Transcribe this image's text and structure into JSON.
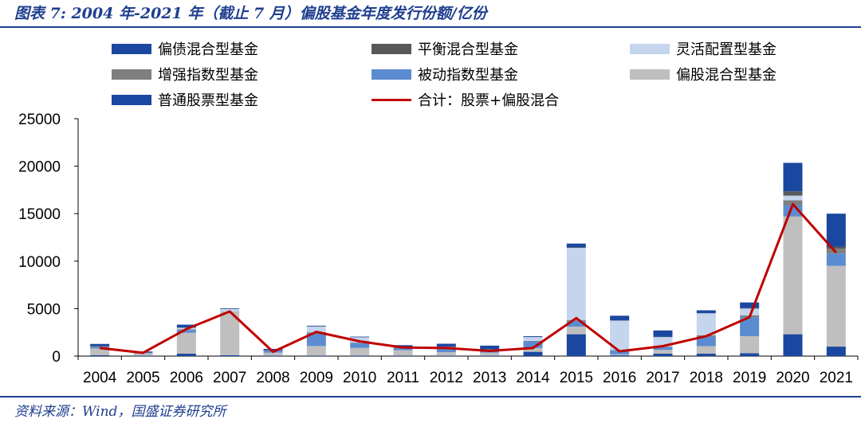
{
  "header": {
    "title": "图表 7:  2004 年-2021 年（截止 7 月）偏股基金年度发行份额/亿份"
  },
  "footer": {
    "source": "资料来源：Wind，国盛证券研究所"
  },
  "chart_data": {
    "type": "bar",
    "subtype": "stacked-bar-with-line",
    "categories": [
      "2004",
      "2005",
      "2006",
      "2007",
      "2008",
      "2009",
      "2010",
      "2011",
      "2012",
      "2013",
      "2014",
      "2015",
      "2016",
      "2017",
      "2018",
      "2019",
      "2020",
      "2021"
    ],
    "ylim": [
      0,
      25000
    ],
    "yticks": [
      0,
      5000,
      10000,
      15000,
      20000,
      25000
    ],
    "ytick_labels": [
      "0",
      "5000",
      "10000",
      "15000",
      "20000",
      "25000"
    ],
    "grid": false,
    "legend_position": "top",
    "series": [
      {
        "name": "普通股票型基金",
        "color": "#1A47A0",
        "values": [
          100,
          50,
          250,
          100,
          60,
          60,
          60,
          60,
          60,
          60,
          450,
          2300,
          80,
          250,
          250,
          300,
          2300,
          1000
        ]
      },
      {
        "name": "偏股混合型基金",
        "color": "#BFBFBF",
        "values": [
          700,
          250,
          2200,
          4500,
          300,
          1000,
          800,
          550,
          350,
          300,
          400,
          800,
          100,
          400,
          800,
          1800,
          12400,
          8500
        ]
      },
      {
        "name": "被动指数型基金",
        "color": "#5B8CD1",
        "values": [
          150,
          30,
          300,
          0,
          200,
          1400,
          500,
          300,
          500,
          300,
          700,
          600,
          400,
          300,
          1000,
          2000,
          1200,
          1300
        ]
      },
      {
        "name": "增强指数型基金",
        "color": "#7F7F7F",
        "values": [
          60,
          20,
          80,
          50,
          40,
          50,
          60,
          30,
          80,
          40,
          50,
          100,
          50,
          50,
          150,
          200,
          500,
          500
        ]
      },
      {
        "name": "灵活配置型基金",
        "color": "#C5D5EE",
        "values": [
          0,
          0,
          150,
          300,
          0,
          600,
          550,
          0,
          0,
          0,
          400,
          7600,
          3100,
          1000,
          2300,
          700,
          500,
          0
        ]
      },
      {
        "name": "平衡混合型基金",
        "color": "#595959",
        "values": [
          20,
          10,
          30,
          30,
          20,
          20,
          20,
          20,
          20,
          20,
          20,
          50,
          20,
          20,
          20,
          50,
          450,
          200
        ]
      },
      {
        "name": "偏债混合型基金",
        "color": "#1A47A0",
        "values": [
          250,
          120,
          300,
          50,
          140,
          70,
          60,
          190,
          290,
          380,
          80,
          400,
          500,
          680,
          300,
          600,
          3000,
          3500
        ]
      }
    ],
    "line": {
      "name": "合计：股票+偏股混合",
      "color": "#C00000",
      "values": [
        850,
        350,
        2850,
        4700,
        450,
        2550,
        1550,
        900,
        850,
        550,
        850,
        4000,
        500,
        1050,
        2100,
        4100,
        16000,
        10900
      ]
    }
  },
  "legend": {
    "items": [
      {
        "label": "偏债混合型基金",
        "color": "#1A47A0",
        "kind": "bar"
      },
      {
        "label": "平衡混合型基金",
        "color": "#595959",
        "kind": "bar"
      },
      {
        "label": "灵活配置型基金",
        "color": "#C5D5EE",
        "kind": "bar"
      },
      {
        "label": "增强指数型基金",
        "color": "#7F7F7F",
        "kind": "bar"
      },
      {
        "label": "被动指数型基金",
        "color": "#5B8CD1",
        "kind": "bar"
      },
      {
        "label": "偏股混合型基金",
        "color": "#BFBFBF",
        "kind": "bar"
      },
      {
        "label": "普通股票型基金",
        "color": "#1A47A0",
        "kind": "bar"
      },
      {
        "label": "合计：股票+偏股混合",
        "color": "#C00000",
        "kind": "line"
      }
    ]
  }
}
